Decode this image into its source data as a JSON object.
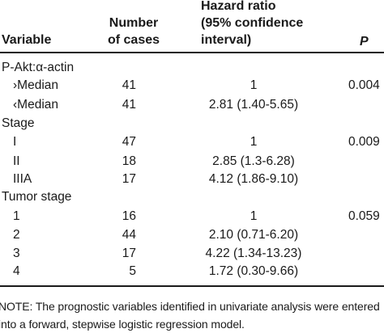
{
  "table": {
    "headers": {
      "variable": "Variable",
      "cases_line1": "Number",
      "cases_line2": "of cases",
      "hr_line1": "Hazard ratio",
      "hr_line2": "(95% confidence",
      "hr_line3": "interval)",
      "p": "P"
    },
    "groups": [
      {
        "label": "P-Akt:α-actin",
        "rows": [
          {
            "label": "›Median",
            "cases": "41",
            "hr": "1",
            "p": "0.004"
          },
          {
            "label": "‹Median",
            "cases": "41",
            "hr": "2.81 (1.40-5.65)",
            "p": ""
          }
        ]
      },
      {
        "label": "Stage",
        "rows": [
          {
            "label": "I",
            "cases": "47",
            "hr": "1",
            "p": "0.009"
          },
          {
            "label": "II",
            "cases": "18",
            "hr": "2.85 (1.3-6.28)",
            "p": ""
          },
          {
            "label": "IIIA",
            "cases": "17",
            "hr": "4.12 (1.86-9.10)",
            "p": ""
          }
        ]
      },
      {
        "label": "Tumor stage",
        "rows": [
          {
            "label": "1",
            "cases": "16",
            "hr": "1",
            "p": "0.059"
          },
          {
            "label": "2",
            "cases": "44",
            "hr": "2.10 (0.71-6.20)",
            "p": ""
          },
          {
            "label": "3",
            "cases": "17",
            "hr": "4.22 (1.34-13.23)",
            "p": ""
          },
          {
            "label": "4",
            "cases": "5",
            "hr": "1.72 (0.30-9.66)",
            "p": ""
          }
        ]
      }
    ],
    "note_line1": "NOTE: The prognostic variables identified in univariate analysis were entered",
    "note_line2": "into a forward, stepwise logistic regression model."
  }
}
